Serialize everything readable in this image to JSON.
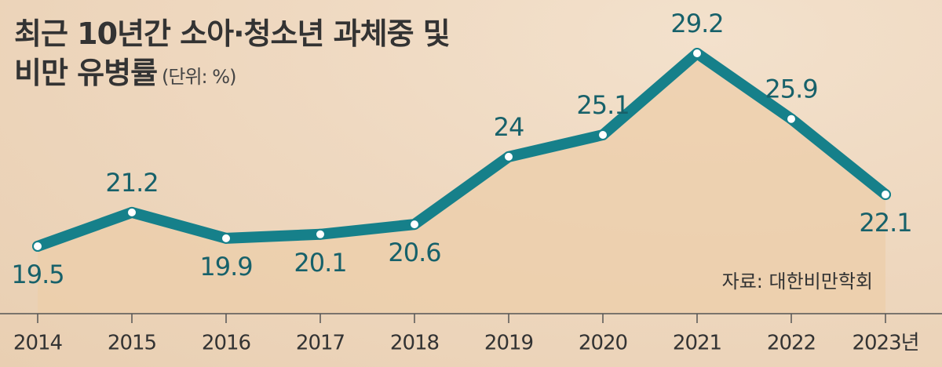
{
  "chart_data": {
    "type": "line",
    "title": "최근 10년간 소아·청소년 과체중 및\n비만 유병률",
    "subtitle": "(단위: %)",
    "source": "자료: 대한비만학회",
    "categories": [
      "2014",
      "2015",
      "2016",
      "2017",
      "2018",
      "2019",
      "2020",
      "2021",
      "2022",
      "2023년"
    ],
    "values": [
      19.5,
      21.2,
      19.9,
      20.1,
      20.6,
      24,
      25.1,
      29.2,
      25.9,
      22.1
    ],
    "color": "#16808a"
  }
}
